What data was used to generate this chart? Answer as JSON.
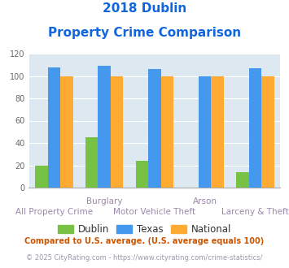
{
  "title_line1": "2018 Dublin",
  "title_line2": "Property Crime Comparison",
  "dublin": [
    20,
    45,
    24,
    0,
    14
  ],
  "texas": [
    108,
    109,
    106,
    100,
    107
  ],
  "national": [
    100,
    100,
    100,
    100,
    100
  ],
  "dublin_color": "#77c244",
  "texas_color": "#4499ee",
  "national_color": "#ffaa33",
  "title_color": "#1166dd",
  "bg_color": "#dde8f0",
  "ylim": [
    0,
    120
  ],
  "yticks": [
    0,
    20,
    40,
    60,
    80,
    100,
    120
  ],
  "top_labels": [
    "",
    "Burglary",
    "",
    "Arson",
    ""
  ],
  "bottom_labels": [
    "All Property Crime",
    "",
    "Motor Vehicle Theft",
    "",
    "Larceny & Theft"
  ],
  "label_color": "#9988aa",
  "legend_labels": [
    "Dublin",
    "Texas",
    "National"
  ],
  "footnote1": "Compared to U.S. average. (U.S. average equals 100)",
  "footnote2": "© 2025 CityRating.com - https://www.cityrating.com/crime-statistics/",
  "footnote1_color": "#cc5500",
  "footnote2_color": "#9999aa"
}
